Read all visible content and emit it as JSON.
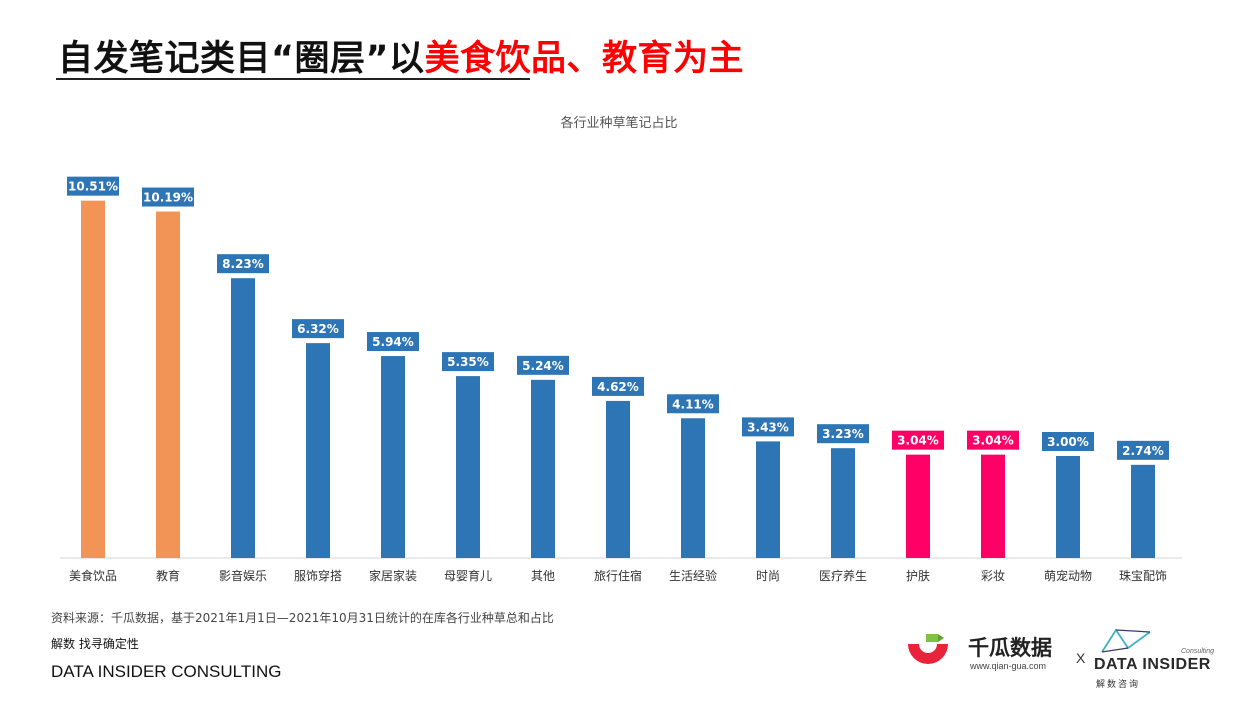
{
  "headline": {
    "black_part": "自发笔记类目“圈层”以",
    "red_part": "美食饮品、教育为主"
  },
  "chart_data": {
    "type": "bar",
    "title": "各行业种草笔记占比",
    "xlabel": "",
    "ylabel": "",
    "ylim": [
      0,
      11
    ],
    "grid": false,
    "legend": "none",
    "categories": [
      "美食饮品",
      "教育",
      "影音娱乐",
      "服饰穿搭",
      "家居家装",
      "母婴育儿",
      "其他",
      "旅行住宿",
      "生活经验",
      "时尚",
      "医疗养生",
      "护肤",
      "彩妆",
      "萌宠动物",
      "珠宝配饰"
    ],
    "values": [
      10.51,
      10.19,
      8.23,
      6.32,
      5.94,
      5.35,
      5.24,
      4.62,
      4.11,
      3.43,
      3.23,
      3.04,
      3.04,
      3.0,
      2.74
    ],
    "value_labels": [
      "10.51%",
      "10.19%",
      "8.23%",
      "6.32%",
      "5.94%",
      "5.35%",
      "5.24%",
      "4.62%",
      "4.11%",
      "3.43%",
      "3.23%",
      "3.04%",
      "3.04%",
      "3.00%",
      "2.74%"
    ],
    "bar_colors": [
      "#F29455",
      "#F29455",
      "#2E75B6",
      "#2E75B6",
      "#2E75B6",
      "#2E75B6",
      "#2E75B6",
      "#2E75B6",
      "#2E75B6",
      "#2E75B6",
      "#2E75B6",
      "#FF0066",
      "#FF0066",
      "#2E75B6",
      "#2E75B6"
    ],
    "label_colors": [
      "#2E75B6",
      "#2E75B6",
      "#2E75B6",
      "#2E75B6",
      "#2E75B6",
      "#2E75B6",
      "#2E75B6",
      "#2E75B6",
      "#2E75B6",
      "#2E75B6",
      "#2E75B6",
      "#FF0066",
      "#FF0066",
      "#2E75B6",
      "#2E75B6"
    ]
  },
  "footer": {
    "source": "资料来源：千瓜数据，基于2021年1月1日—2021年10月31日统计的在库各行业种草总和占比",
    "slogan": "解数 找寻确定性",
    "company": "DATA INSIDER CONSULTING"
  },
  "logos": {
    "qiangua_name": "千瓜数据",
    "qiangua_url": "www.qian-gua.com",
    "separator": "X",
    "di_name": "DATA INSIDER",
    "di_consulting": "Consulting",
    "di_cn": "解数咨询"
  },
  "colors": {
    "orange": "#F29455",
    "blue": "#2E75B6",
    "pink": "#FF0066",
    "headline_red": "#FF0000"
  }
}
